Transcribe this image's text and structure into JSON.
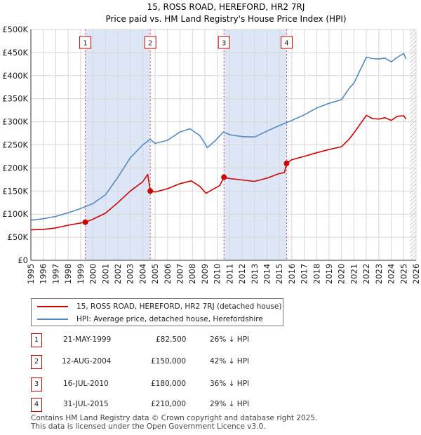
{
  "chart_data": {
    "type": "line",
    "title": "15, ROSS ROAD, HEREFORD, HR2 7RJ",
    "subtitle": "Price paid vs. HM Land Registry's House Price Index (HPI)",
    "xlim": [
      1995,
      2026
    ],
    "ylim": [
      0,
      500000
    ],
    "x_ticks": [
      "1995",
      "1996",
      "1997",
      "1998",
      "1999",
      "2000",
      "2001",
      "2002",
      "2003",
      "2004",
      "2005",
      "2006",
      "2007",
      "2008",
      "2009",
      "2010",
      "2011",
      "2012",
      "2013",
      "2014",
      "2015",
      "2016",
      "2017",
      "2018",
      "2019",
      "2020",
      "2021",
      "2022",
      "2023",
      "2024",
      "2025",
      "2026"
    ],
    "y_ticks": [
      {
        "value": 0,
        "label": "£0"
      },
      {
        "value": 50000,
        "label": "£50K"
      },
      {
        "value": 100000,
        "label": "£100K"
      },
      {
        "value": 150000,
        "label": "£150K"
      },
      {
        "value": 200000,
        "label": "£200K"
      },
      {
        "value": 250000,
        "label": "£250K"
      },
      {
        "value": 300000,
        "label": "£300K"
      },
      {
        "value": 350000,
        "label": "£350K"
      },
      {
        "value": 400000,
        "label": "£400K"
      },
      {
        "value": 450000,
        "label": "£450K"
      },
      {
        "value": 500000,
        "label": "£500K"
      }
    ],
    "series": [
      {
        "name": "15, ROSS ROAD, HEREFORD, HR2 7RJ (detached house)",
        "color": "#cc0000",
        "points": [
          [
            1995.0,
            66000
          ],
          [
            1996.0,
            67000
          ],
          [
            1997.0,
            70000
          ],
          [
            1998.0,
            76000
          ],
          [
            1999.38,
            82500
          ],
          [
            2000.0,
            89000
          ],
          [
            2001.0,
            102000
          ],
          [
            2002.0,
            125000
          ],
          [
            2003.0,
            150000
          ],
          [
            2004.0,
            170000
          ],
          [
            2004.4,
            186000
          ],
          [
            2004.61,
            150000
          ],
          [
            2005.0,
            148000
          ],
          [
            2006.0,
            155000
          ],
          [
            2007.0,
            166000
          ],
          [
            2007.9,
            172000
          ],
          [
            2008.6,
            160000
          ],
          [
            2009.1,
            145000
          ],
          [
            2009.6,
            153000
          ],
          [
            2010.2,
            162000
          ],
          [
            2010.54,
            180000
          ],
          [
            2011.0,
            177000
          ],
          [
            2012.0,
            174000
          ],
          [
            2013.0,
            171000
          ],
          [
            2014.0,
            178000
          ],
          [
            2015.0,
            188000
          ],
          [
            2015.4,
            190000
          ],
          [
            2015.58,
            210000
          ],
          [
            2016.0,
            218000
          ],
          [
            2017.0,
            225000
          ],
          [
            2018.0,
            233000
          ],
          [
            2019.0,
            240000
          ],
          [
            2020.0,
            246000
          ],
          [
            2020.6,
            262000
          ],
          [
            2021.0,
            276000
          ],
          [
            2021.5,
            295000
          ],
          [
            2022.0,
            314000
          ],
          [
            2022.5,
            307000
          ],
          [
            2023.0,
            306000
          ],
          [
            2023.5,
            309000
          ],
          [
            2024.0,
            303000
          ],
          [
            2024.5,
            312000
          ],
          [
            2025.0,
            313000
          ],
          [
            2025.2,
            306000
          ]
        ]
      },
      {
        "name": "HPI: Average price, detached house, Herefordshire",
        "color": "#5588bb",
        "points": [
          [
            1995.0,
            87000
          ],
          [
            1996.0,
            90000
          ],
          [
            1997.0,
            95000
          ],
          [
            1998.0,
            103000
          ],
          [
            1999.0,
            112000
          ],
          [
            2000.0,
            123000
          ],
          [
            2001.0,
            142000
          ],
          [
            2002.0,
            180000
          ],
          [
            2003.0,
            222000
          ],
          [
            2004.0,
            250000
          ],
          [
            2004.6,
            262000
          ],
          [
            2005.0,
            253000
          ],
          [
            2006.0,
            260000
          ],
          [
            2007.0,
            278000
          ],
          [
            2007.8,
            285000
          ],
          [
            2008.6,
            270000
          ],
          [
            2009.2,
            244000
          ],
          [
            2009.8,
            258000
          ],
          [
            2010.5,
            278000
          ],
          [
            2011.0,
            272000
          ],
          [
            2012.0,
            268000
          ],
          [
            2013.0,
            267000
          ],
          [
            2014.0,
            280000
          ],
          [
            2015.0,
            292000
          ],
          [
            2016.0,
            303000
          ],
          [
            2017.0,
            315000
          ],
          [
            2018.0,
            330000
          ],
          [
            2019.0,
            340000
          ],
          [
            2020.0,
            348000
          ],
          [
            2020.6,
            372000
          ],
          [
            2021.0,
            384000
          ],
          [
            2021.5,
            412000
          ],
          [
            2022.0,
            440000
          ],
          [
            2022.5,
            437000
          ],
          [
            2023.0,
            436000
          ],
          [
            2023.5,
            438000
          ],
          [
            2024.0,
            430000
          ],
          [
            2024.5,
            440000
          ],
          [
            2025.0,
            448000
          ],
          [
            2025.2,
            436000
          ]
        ]
      }
    ],
    "shaded_periods": [
      [
        1999.38,
        2004.61
      ],
      [
        2010.54,
        2015.58
      ]
    ],
    "hatched_from": 2025.5,
    "sales": [
      {
        "num": "1",
        "year": 1999.38,
        "value": 82500
      },
      {
        "num": "2",
        "year": 2004.61,
        "value": 150000
      },
      {
        "num": "3",
        "year": 2010.54,
        "value": 180000
      },
      {
        "num": "4",
        "year": 2015.58,
        "value": 210000
      }
    ]
  },
  "legend": {
    "property_label": "15, ROSS ROAD, HEREFORD, HR2 7RJ (detached house)",
    "hpi_label": "HPI: Average price, detached house, Herefordshire",
    "property_color": "#cc0000",
    "hpi_color": "#5588bb"
  },
  "transactions": [
    {
      "num": "1",
      "date": "21-MAY-1999",
      "price": "£82,500",
      "diff": "26% ↓ HPI"
    },
    {
      "num": "2",
      "date": "12-AUG-2004",
      "price": "£150,000",
      "diff": "42% ↓ HPI"
    },
    {
      "num": "3",
      "date": "16-JUL-2010",
      "price": "£180,000",
      "diff": "36% ↓ HPI"
    },
    {
      "num": "4",
      "date": "31-JUL-2015",
      "price": "£210,000",
      "diff": "29% ↓ HPI"
    }
  ],
  "footer": {
    "line1": "Contains HM Land Registry data © Crown copyright and database right 2025.",
    "line2": "This data is licensed under the Open Government Licence v3.0."
  }
}
